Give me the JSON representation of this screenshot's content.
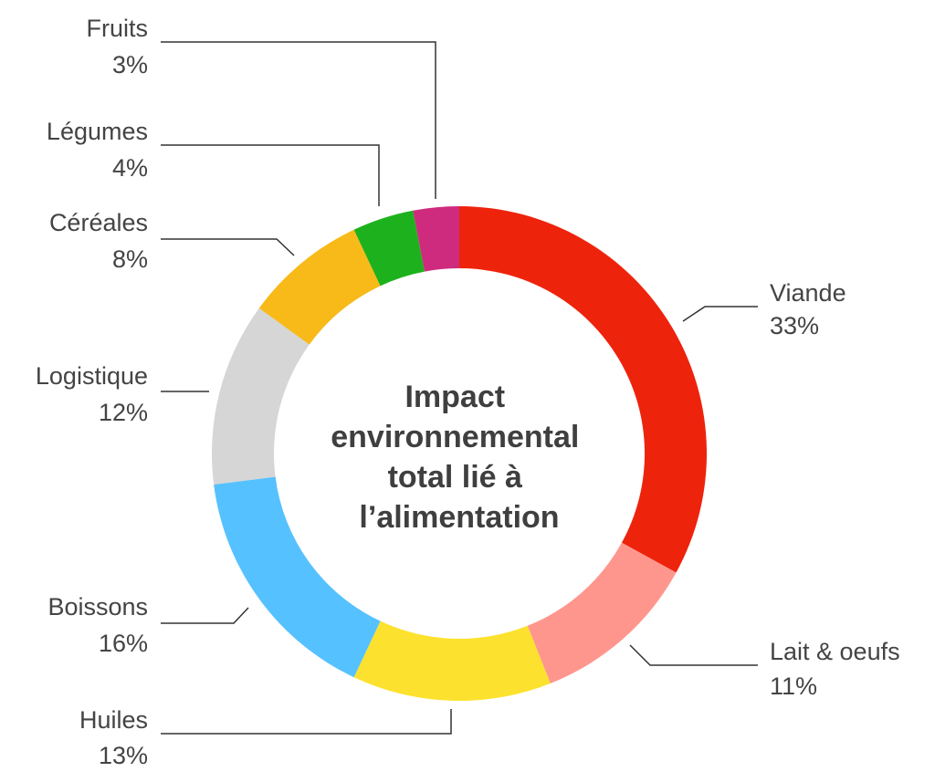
{
  "chart_data": {
    "type": "pie",
    "donut": true,
    "title": "",
    "center_label": [
      "Impact",
      "environnemental",
      "total lié à",
      "l’alimentation"
    ],
    "slices": [
      {
        "name": "Viande",
        "value": 33,
        "label": "33%",
        "color": "#EE230C"
      },
      {
        "name": "Lait & oeufs",
        "value": 11,
        "label": "11%",
        "color": "#FF968D"
      },
      {
        "name": "Huiles",
        "value": 13,
        "label": "13%",
        "color": "#FCE22E"
      },
      {
        "name": "Boissons",
        "value": 16,
        "label": "16%",
        "color": "#56C1FF"
      },
      {
        "name": "Logistique",
        "value": 12,
        "label": "12%",
        "color": "#D6D6D6"
      },
      {
        "name": "Céréales",
        "value": 8,
        "label": "8%",
        "color": "#F8BA19"
      },
      {
        "name": "Légumes",
        "value": 4,
        "label": "4%",
        "color": "#1DB21D"
      },
      {
        "name": "Fruits",
        "value": 3,
        "label": "3%",
        "color": "#CF2B7E"
      }
    ],
    "legend": "none"
  }
}
